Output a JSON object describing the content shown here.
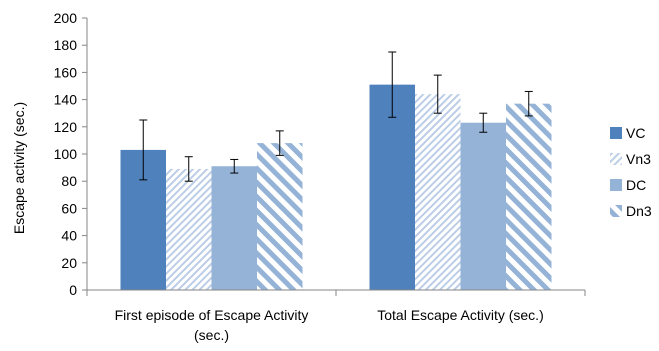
{
  "chart_data": {
    "type": "bar",
    "ylabel": "Escape activity (sec.)",
    "ylim": [
      0,
      200
    ],
    "yticks": [
      0,
      20,
      40,
      60,
      80,
      100,
      120,
      140,
      160,
      180,
      200
    ],
    "grid": false,
    "legend_position": "right",
    "categories": [
      [
        "First episode of Escape Activity",
        "(sec.)"
      ],
      [
        "Total Escape Activity (sec.)"
      ]
    ],
    "series": [
      {
        "name": "VC",
        "pattern": "solid",
        "color": "#4f81bd",
        "values": [
          103,
          151
        ],
        "errors": [
          22,
          24
        ]
      },
      {
        "name": "Vn3",
        "pattern": "light-hatch",
        "color": "#bccde6",
        "values": [
          89,
          144
        ],
        "errors": [
          9,
          14
        ]
      },
      {
        "name": "DC",
        "pattern": "solid",
        "color": "#95b3d7",
        "values": [
          91,
          123
        ],
        "errors": [
          5,
          7
        ]
      },
      {
        "name": "Dn3",
        "pattern": "wide-stripes",
        "color": "#95b3d7",
        "values": [
          108,
          137
        ],
        "errors": [
          9,
          9
        ]
      }
    ]
  }
}
